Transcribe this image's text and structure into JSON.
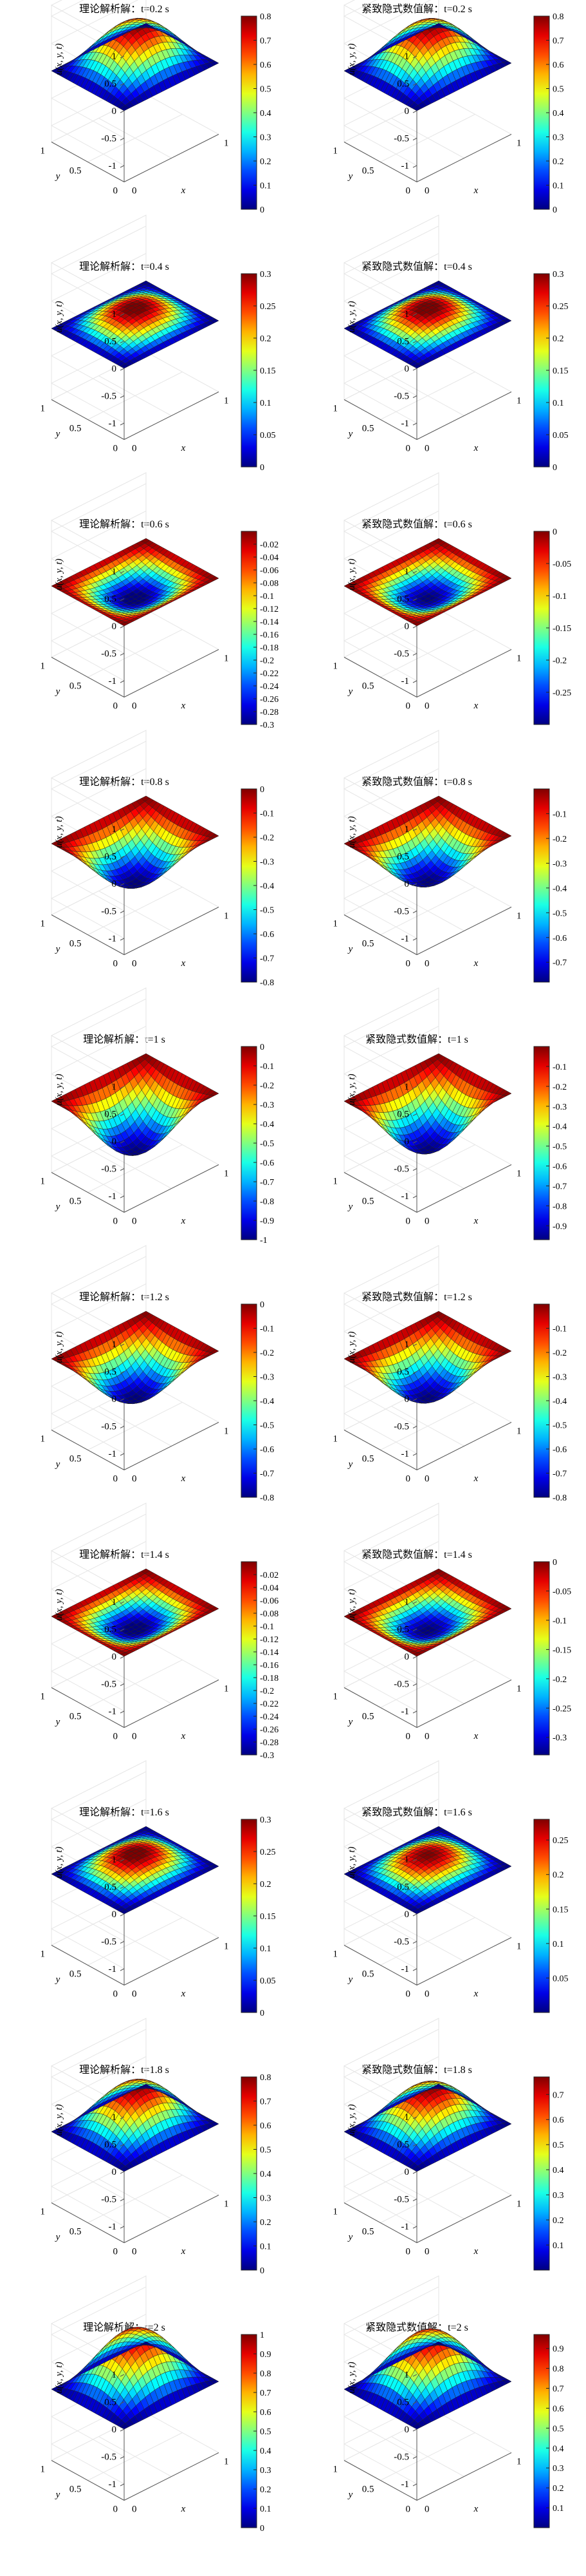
{
  "chart_data": [
    {
      "type": "surface",
      "row": 0,
      "col": 0,
      "title": "理论解析解：t=0.2 s",
      "xlabel": "x",
      "ylabel": "y",
      "zlabel": "u(x, y, t)",
      "zlim": [
        -1.3,
        1.2
      ],
      "x_ticks": [
        "0",
        "1"
      ],
      "y_ticks": [
        "1",
        "0.5",
        "0"
      ],
      "z_ticks": [
        "1",
        "0.5",
        "0",
        "-0.5",
        "-1"
      ],
      "amplitude": 0.809,
      "colorbar": {
        "min": 0,
        "max": 0.8,
        "ticks": [
          "0.8",
          "0.7",
          "0.6",
          "0.5",
          "0.4",
          "0.3",
          "0.2",
          "0.1",
          "0"
        ]
      }
    },
    {
      "type": "surface",
      "row": 0,
      "col": 1,
      "title": "紧致隐式数值解：t=0.2 s",
      "xlabel": "x",
      "ylabel": "y",
      "zlabel": "u(x, y, t)",
      "zlim": [
        -1.3,
        1.2
      ],
      "x_ticks": [
        "0",
        "1"
      ],
      "y_ticks": [
        "1",
        "0.5",
        "0"
      ],
      "z_ticks": [
        "1",
        "0.5",
        "0",
        "-0.5",
        "-1"
      ],
      "amplitude": 0.808,
      "colorbar": {
        "min": 0,
        "max": 0.8,
        "ticks": [
          "0.8",
          "0.7",
          "0.6",
          "0.5",
          "0.4",
          "0.3",
          "0.2",
          "0.1",
          "0"
        ]
      }
    },
    {
      "type": "surface",
      "row": 1,
      "col": 0,
      "title": "理论解析解：t=0.4 s",
      "xlabel": "x",
      "ylabel": "y",
      "zlabel": "u(x, y, t)",
      "zlim": [
        -1.3,
        1.2
      ],
      "x_ticks": [
        "0",
        "1"
      ],
      "y_ticks": [
        "1",
        "0.5",
        "0"
      ],
      "z_ticks": [
        "1",
        "0.5",
        "0",
        "-0.5",
        "-1"
      ],
      "amplitude": 0.309,
      "colorbar": {
        "min": 0,
        "max": 0.3,
        "ticks": [
          "0.3",
          "0.25",
          "0.2",
          "0.15",
          "0.1",
          "0.05",
          "0"
        ]
      }
    },
    {
      "type": "surface",
      "row": 1,
      "col": 1,
      "title": "紧致隐式数值解：t=0.4 s",
      "xlabel": "x",
      "ylabel": "y",
      "zlabel": "u(x, y, t)",
      "zlim": [
        -1.3,
        1.2
      ],
      "x_ticks": [
        "0",
        "1"
      ],
      "y_ticks": [
        "1",
        "0.5",
        "0"
      ],
      "z_ticks": [
        "1",
        "0.5",
        "0",
        "-0.5",
        "-1"
      ],
      "amplitude": 0.31,
      "colorbar": {
        "min": 0,
        "max": 0.3,
        "ticks": [
          "0.3",
          "0.25",
          "0.2",
          "0.15",
          "0.1",
          "0.05",
          "0"
        ]
      }
    },
    {
      "type": "surface",
      "row": 2,
      "col": 0,
      "title": "理论解析解：t=0.6 s",
      "xlabel": "x",
      "ylabel": "y",
      "zlabel": "u(x, y, t)",
      "zlim": [
        -1.3,
        1.2
      ],
      "x_ticks": [
        "0",
        "1"
      ],
      "y_ticks": [
        "1",
        "0.5",
        "0"
      ],
      "z_ticks": [
        "1",
        "0.5",
        "0",
        "-0.5",
        "-1"
      ],
      "amplitude": -0.309,
      "colorbar": {
        "min": -0.3,
        "max": 0,
        "ticks": [
          "-0.02",
          "-0.04",
          "-0.06",
          "-0.08",
          "-0.1",
          "-0.12",
          "-0.14",
          "-0.16",
          "-0.18",
          "-0.2",
          "-0.22",
          "-0.24",
          "-0.26",
          "-0.28",
          "-0.3"
        ]
      }
    },
    {
      "type": "surface",
      "row": 2,
      "col": 1,
      "title": "紧致隐式数值解：t=0.6 s",
      "xlabel": "x",
      "ylabel": "y",
      "zlabel": "u(x, y, t)",
      "zlim": [
        -1.3,
        1.2
      ],
      "x_ticks": [
        "0",
        "1"
      ],
      "y_ticks": [
        "1",
        "0.5",
        "0"
      ],
      "z_ticks": [
        "1",
        "0.5",
        "0",
        "-0.5",
        "-1"
      ],
      "amplitude": -0.3,
      "colorbar": {
        "min": -0.3,
        "max": 0,
        "ticks": [
          "0",
          "-0.05",
          "-0.1",
          "-0.15",
          "-0.2",
          "-0.25"
        ]
      }
    },
    {
      "type": "surface",
      "row": 3,
      "col": 0,
      "title": "理论解析解：t=0.8 s",
      "xlabel": "x",
      "ylabel": "y",
      "zlabel": "u(x, y, t)",
      "zlim": [
        -1.3,
        1.2
      ],
      "x_ticks": [
        "0",
        "1"
      ],
      "y_ticks": [
        "1",
        "0.5",
        "0"
      ],
      "z_ticks": [
        "1",
        "0.5",
        "0",
        "-0.5",
        "-1"
      ],
      "amplitude": -0.809,
      "colorbar": {
        "min": -0.8,
        "max": 0,
        "ticks": [
          "0",
          "-0.1",
          "-0.2",
          "-0.3",
          "-0.4",
          "-0.5",
          "-0.6",
          "-0.7",
          "-0.8"
        ]
      }
    },
    {
      "type": "surface",
      "row": 3,
      "col": 1,
      "title": "紧致隐式数值解：t=0.8 s",
      "xlabel": "x",
      "ylabel": "y",
      "zlabel": "u(x, y, t)",
      "zlim": [
        -1.3,
        1.2
      ],
      "x_ticks": [
        "0",
        "1"
      ],
      "y_ticks": [
        "1",
        "0.5",
        "0"
      ],
      "z_ticks": [
        "1",
        "0.5",
        "0",
        "-0.5",
        "-1"
      ],
      "amplitude": -0.78,
      "colorbar": {
        "min": -0.78,
        "max": 0,
        "ticks": [
          "-0.1",
          "-0.2",
          "-0.3",
          "-0.4",
          "-0.5",
          "-0.6",
          "-0.7"
        ]
      }
    },
    {
      "type": "surface",
      "row": 4,
      "col": 0,
      "title": "理论解析解：t=1 s",
      "xlabel": "x",
      "ylabel": "y",
      "zlabel": "u(x, y, t)",
      "zlim": [
        -1.3,
        1.2
      ],
      "x_ticks": [
        "0",
        "1"
      ],
      "y_ticks": [
        "1",
        "0.5",
        "0"
      ],
      "z_ticks": [
        "1",
        "0.5",
        "0",
        "-0.5",
        "-1"
      ],
      "amplitude": -1.0,
      "colorbar": {
        "min": -1.0,
        "max": 0,
        "ticks": [
          "0",
          "-0.1",
          "-0.2",
          "-0.3",
          "-0.4",
          "-0.5",
          "-0.6",
          "-0.7",
          "-0.8",
          "-0.9",
          "-1"
        ]
      }
    },
    {
      "type": "surface",
      "row": 4,
      "col": 1,
      "title": "紧致隐式数值解：t=1 s",
      "xlabel": "x",
      "ylabel": "y",
      "zlabel": "u(x, y, t)",
      "zlim": [
        -1.3,
        1.2
      ],
      "x_ticks": [
        "0",
        "1"
      ],
      "y_ticks": [
        "1",
        "0.5",
        "0"
      ],
      "z_ticks": [
        "1",
        "0.5",
        "0",
        "-0.5",
        "-1"
      ],
      "amplitude": -0.97,
      "colorbar": {
        "min": -0.97,
        "max": 0,
        "ticks": [
          "-0.1",
          "-0.2",
          "-0.3",
          "-0.4",
          "-0.5",
          "-0.6",
          "-0.7",
          "-0.8",
          "-0.9"
        ]
      }
    },
    {
      "type": "surface",
      "row": 5,
      "col": 0,
      "title": "理论解析解：t=1.2 s",
      "xlabel": "x",
      "ylabel": "y",
      "zlabel": "u(x, y, t)",
      "zlim": [
        -1.3,
        1.2
      ],
      "x_ticks": [
        "0",
        "1"
      ],
      "y_ticks": [
        "1",
        "0.5",
        "0"
      ],
      "z_ticks": [
        "1",
        "0.5",
        "0",
        "-0.5",
        "-1"
      ],
      "amplitude": -0.809,
      "colorbar": {
        "min": -0.8,
        "max": 0,
        "ticks": [
          "0",
          "-0.1",
          "-0.2",
          "-0.3",
          "-0.4",
          "-0.5",
          "-0.6",
          "-0.7",
          "-0.8"
        ]
      }
    },
    {
      "type": "surface",
      "row": 5,
      "col": 1,
      "title": "紧致隐式数值解：t=1.2 s",
      "xlabel": "x",
      "ylabel": "y",
      "zlabel": "u(x, y, t)",
      "zlim": [
        -1.3,
        1.2
      ],
      "x_ticks": [
        "0",
        "1"
      ],
      "y_ticks": [
        "1",
        "0.5",
        "0"
      ],
      "z_ticks": [
        "1",
        "0.5",
        "0",
        "-0.5",
        "-1"
      ],
      "amplitude": -0.8,
      "colorbar": {
        "min": -0.8,
        "max": 0,
        "ticks": [
          "-0.1",
          "-0.2",
          "-0.3",
          "-0.4",
          "-0.5",
          "-0.6",
          "-0.7",
          "-0.8"
        ]
      }
    },
    {
      "type": "surface",
      "row": 6,
      "col": 0,
      "title": "理论解析解：t=1.4 s",
      "xlabel": "x",
      "ylabel": "y",
      "zlabel": "u(x, y, t)",
      "zlim": [
        -1.3,
        1.2
      ],
      "x_ticks": [
        "0",
        "1"
      ],
      "y_ticks": [
        "1",
        "0.5",
        "0"
      ],
      "z_ticks": [
        "1",
        "0.5",
        "0",
        "-0.5",
        "-1"
      ],
      "amplitude": -0.309,
      "colorbar": {
        "min": -0.3,
        "max": 0,
        "ticks": [
          "-0.02",
          "-0.04",
          "-0.06",
          "-0.08",
          "-0.1",
          "-0.12",
          "-0.14",
          "-0.16",
          "-0.18",
          "-0.2",
          "-0.22",
          "-0.24",
          "-0.26",
          "-0.28",
          "-0.3"
        ]
      }
    },
    {
      "type": "surface",
      "row": 6,
      "col": 1,
      "title": "紧致隐式数值解：t=1.4 s",
      "xlabel": "x",
      "ylabel": "y",
      "zlabel": "u(x, y, t)",
      "zlim": [
        -1.3,
        1.2
      ],
      "x_ticks": [
        "0",
        "1"
      ],
      "y_ticks": [
        "1",
        "0.5",
        "0"
      ],
      "z_ticks": [
        "1",
        "0.5",
        "0",
        "-0.5",
        "-1"
      ],
      "amplitude": -0.33,
      "colorbar": {
        "min": -0.33,
        "max": 0,
        "ticks": [
          "0",
          "-0.05",
          "-0.1",
          "-0.15",
          "-0.2",
          "-0.25",
          "-0.3"
        ]
      }
    },
    {
      "type": "surface",
      "row": 7,
      "col": 0,
      "title": "理论解析解：t=1.6 s",
      "xlabel": "x",
      "ylabel": "y",
      "zlabel": "u(x, y, t)",
      "zlim": [
        -1.3,
        1.2
      ],
      "x_ticks": [
        "0",
        "1"
      ],
      "y_ticks": [
        "1",
        "0.5",
        "0"
      ],
      "z_ticks": [
        "1",
        "0.5",
        "0",
        "-0.5",
        "-1"
      ],
      "amplitude": 0.309,
      "colorbar": {
        "min": 0,
        "max": 0.3,
        "ticks": [
          "0.3",
          "0.25",
          "0.2",
          "0.15",
          "0.1",
          "0.05",
          "0"
        ]
      }
    },
    {
      "type": "surface",
      "row": 7,
      "col": 1,
      "title": "紧致隐式数值解：t=1.6 s",
      "xlabel": "x",
      "ylabel": "y",
      "zlabel": "u(x, y, t)",
      "zlim": [
        -1.3,
        1.2
      ],
      "x_ticks": [
        "0",
        "1"
      ],
      "y_ticks": [
        "1",
        "0.5",
        "0"
      ],
      "z_ticks": [
        "1",
        "0.5",
        "0",
        "-0.5",
        "-1"
      ],
      "amplitude": 0.28,
      "colorbar": {
        "min": 0,
        "max": 0.28,
        "ticks": [
          "0.25",
          "0.2",
          "0.15",
          "0.1",
          "0.05"
        ]
      }
    },
    {
      "type": "surface",
      "row": 8,
      "col": 0,
      "title": "理论解析解：t=1.8 s",
      "xlabel": "x",
      "ylabel": "y",
      "zlabel": "u(x, y, t)",
      "zlim": [
        -1.3,
        1.2
      ],
      "x_ticks": [
        "0",
        "1"
      ],
      "y_ticks": [
        "1",
        "0.5",
        "0"
      ],
      "z_ticks": [
        "1",
        "0.5",
        "0",
        "-0.5",
        "-1"
      ],
      "amplitude": 0.809,
      "colorbar": {
        "min": 0,
        "max": 0.8,
        "ticks": [
          "0.8",
          "0.7",
          "0.6",
          "0.5",
          "0.4",
          "0.3",
          "0.2",
          "0.1",
          "0"
        ]
      }
    },
    {
      "type": "surface",
      "row": 8,
      "col": 1,
      "title": "紧致隐式数值解：t=1.8 s",
      "xlabel": "x",
      "ylabel": "y",
      "zlabel": "u(x, y, t)",
      "zlim": [
        -1.3,
        1.2
      ],
      "x_ticks": [
        "0",
        "1"
      ],
      "y_ticks": [
        "1",
        "0.5",
        "0"
      ],
      "z_ticks": [
        "1",
        "0.5",
        "0",
        "-0.5",
        "-1"
      ],
      "amplitude": 0.77,
      "colorbar": {
        "min": 0,
        "max": 0.77,
        "ticks": [
          "0.7",
          "0.6",
          "0.5",
          "0.4",
          "0.3",
          "0.2",
          "0.1"
        ]
      }
    },
    {
      "type": "surface",
      "row": 9,
      "col": 0,
      "title": "理论解析解：t=2 s",
      "xlabel": "x",
      "ylabel": "y",
      "zlabel": "u(x, y, t)",
      "zlim": [
        -1.3,
        1.2
      ],
      "x_ticks": [
        "0",
        "1"
      ],
      "y_ticks": [
        "1",
        "0.5",
        "0"
      ],
      "z_ticks": [
        "1",
        "0.5",
        "0",
        "-0.5",
        "-1"
      ],
      "amplitude": 1.0,
      "colorbar": {
        "min": 0,
        "max": 1.0,
        "ticks": [
          "1",
          "0.9",
          "0.8",
          "0.7",
          "0.6",
          "0.5",
          "0.4",
          "0.3",
          "0.2",
          "0.1",
          "0"
        ]
      }
    },
    {
      "type": "surface",
      "row": 9,
      "col": 1,
      "title": "紧致隐式数值解：t=2 s",
      "xlabel": "x",
      "ylabel": "y",
      "zlabel": "u(x, y, t)",
      "zlim": [
        -1.3,
        1.2
      ],
      "x_ticks": [
        "0",
        "1"
      ],
      "y_ticks": [
        "1",
        "0.5",
        "0"
      ],
      "z_ticks": [
        "1",
        "0.5",
        "0",
        "-0.5",
        "-1"
      ],
      "amplitude": 0.97,
      "colorbar": {
        "min": 0,
        "max": 0.97,
        "ticks": [
          "0.9",
          "0.8",
          "0.7",
          "0.6",
          "0.5",
          "0.4",
          "0.3",
          "0.2",
          "0.1"
        ]
      }
    }
  ]
}
